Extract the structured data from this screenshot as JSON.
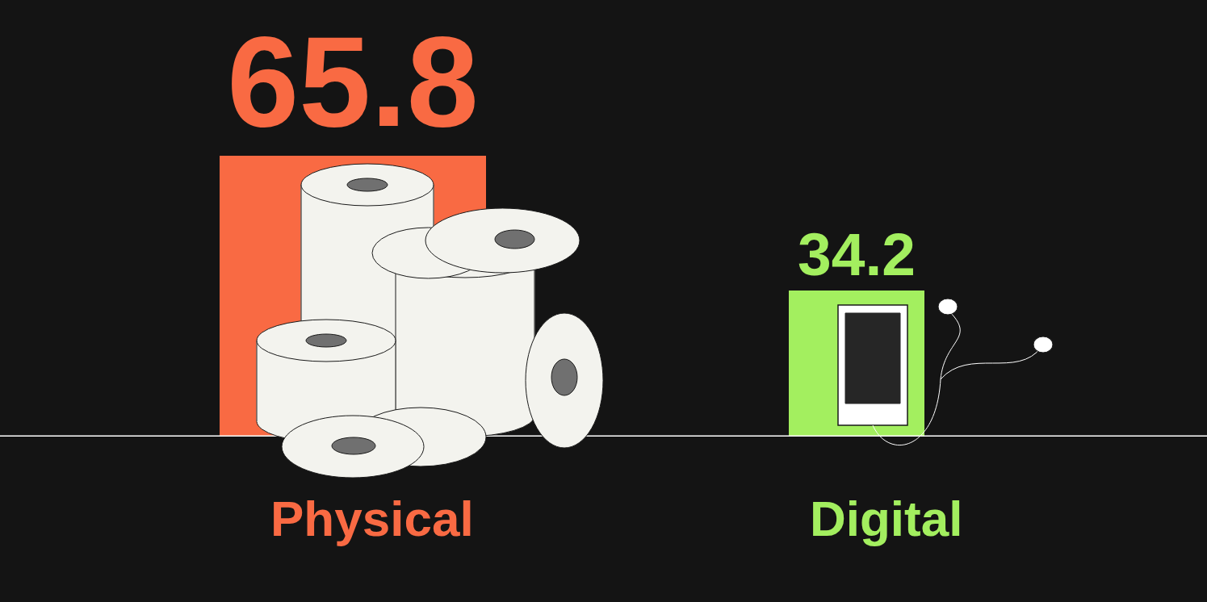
{
  "chart_data": {
    "type": "bar",
    "categories": [
      "Physical",
      "Digital"
    ],
    "values": [
      65.8,
      34.2
    ],
    "colors": [
      "#f96a43",
      "#a3ef5f"
    ],
    "ylim": [
      0,
      100
    ],
    "data_labels": true,
    "tick_labels": false,
    "grid": false
  }
}
